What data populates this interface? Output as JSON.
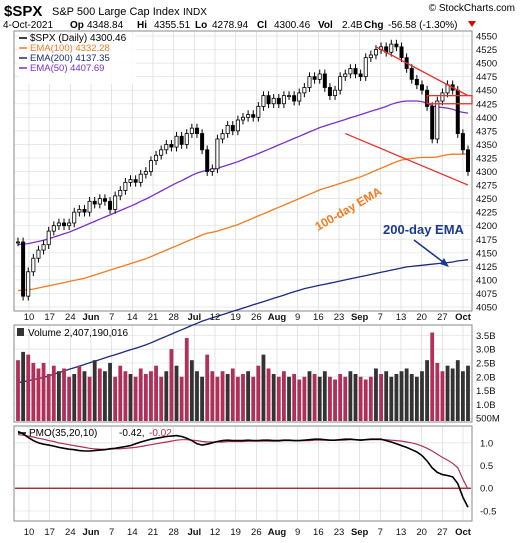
{
  "header": {
    "symbol": "$SPX",
    "name": "S&P 500 Large Cap Index",
    "exchange": "INDX",
    "watermark": "© StockCharts.com",
    "date": "4-Oct-2021",
    "stats": [
      {
        "label": "Op",
        "value": "4348.84"
      },
      {
        "label": "Hi",
        "value": "4355.51"
      },
      {
        "label": "Lo",
        "value": "4278.94"
      },
      {
        "label": "Cl",
        "value": "4300.46"
      },
      {
        "label": "Vol",
        "value": "2.4B"
      },
      {
        "label": "Chg",
        "value": "-56.58 (-1.30%)"
      }
    ]
  },
  "colors": {
    "price": "#000000",
    "ema100": "#f47a20",
    "ema200": "#1c2a80",
    "ema50": "#7a2fd0",
    "trendline": "#e8302a",
    "vol_up": "#b0305a",
    "vol_down": "#333333",
    "pmo": "#000000",
    "pmo_signal": "#b0305a",
    "pmo_zero": "#a01010",
    "annot_blue": "#1a3a8c",
    "annot_orange": "#f47a20"
  },
  "chart_data": [
    {
      "type": "line",
      "title": "$SPX (Daily) 4300.46",
      "legend": [
        {
          "name": "$SPX (Daily) 4300.46",
          "color": "#000000"
        },
        {
          "name": "EMA(100) 4332.28",
          "color": "#f47a20"
        },
        {
          "name": "EMA(200) 4137.35",
          "color": "#1c2a80"
        },
        {
          "name": "EMA(50) 4407.69",
          "color": "#7a2fd0"
        }
      ],
      "ylim": [
        4050,
        4550
      ],
      "yticks": [
        4050,
        4075,
        4100,
        4125,
        4150,
        4175,
        4200,
        4225,
        4250,
        4275,
        4300,
        4325,
        4350,
        4375,
        4400,
        4425,
        4450,
        4475,
        4500,
        4525,
        4550
      ],
      "xticks": [
        "10",
        "17",
        "24",
        "Jun",
        "7",
        "14",
        "21",
        "28",
        "Jul",
        "12",
        "19",
        "26",
        "Aug",
        "9",
        "16",
        "23",
        "Sep",
        "7",
        "13",
        "20",
        "27",
        "Oct"
      ],
      "close": [
        4170,
        4070,
        4115,
        4140,
        4155,
        4165,
        4190,
        4200,
        4205,
        4200,
        4205,
        4225,
        4230,
        4225,
        4245,
        4240,
        4250,
        4245,
        4230,
        4255,
        4265,
        4280,
        4285,
        4280,
        4295,
        4300,
        4320,
        4330,
        4340,
        4350,
        4345,
        4365,
        4350,
        4370,
        4380,
        4370,
        4340,
        4300,
        4305,
        4360,
        4370,
        4385,
        4375,
        4395,
        4400,
        4405,
        4400,
        4420,
        4440,
        4425,
        4435,
        4425,
        4440,
        4440,
        4430,
        4445,
        4455,
        4475,
        4470,
        4480,
        4455,
        4440,
        4450,
        4475,
        4480,
        4490,
        4480,
        4475,
        4510,
        4515,
        4525,
        4530,
        4520,
        4535,
        4530,
        4510,
        4490,
        4470,
        4460,
        4450,
        4420,
        4360,
        4430,
        4445,
        4460,
        4450,
        4370,
        4340,
        4300
      ],
      "ema50": [
        4165,
        4166,
        4167,
        4169,
        4171,
        4173,
        4176,
        4179,
        4182,
        4185,
        4188,
        4192,
        4196,
        4200,
        4204,
        4208,
        4212,
        4216,
        4220,
        4224,
        4228,
        4232,
        4236,
        4240,
        4245,
        4249,
        4254,
        4259,
        4264,
        4269,
        4274,
        4279,
        4283,
        4288,
        4293,
        4297,
        4300,
        4302,
        4304,
        4306,
        4309,
        4312,
        4315,
        4318,
        4322,
        4326,
        4329,
        4333,
        4337,
        4341,
        4345,
        4349,
        4353,
        4357,
        4361,
        4365,
        4369,
        4373,
        4377,
        4381,
        4384,
        4387,
        4390,
        4393,
        4396,
        4399,
        4402,
        4405,
        4408,
        4411,
        4414,
        4417,
        4420,
        4424,
        4427,
        4429,
        4430,
        4430,
        4430,
        4429,
        4426,
        4421,
        4419,
        4418,
        4417,
        4415,
        4411,
        4409,
        4407.69
      ],
      "ema100": [
        4080,
        4081,
        4082,
        4083,
        4085,
        4087,
        4089,
        4091,
        4093,
        4095,
        4097,
        4099,
        4101,
        4103,
        4106,
        4109,
        4112,
        4115,
        4118,
        4121,
        4124,
        4127,
        4130,
        4133,
        4136,
        4139,
        4143,
        4147,
        4151,
        4155,
        4159,
        4163,
        4167,
        4171,
        4175,
        4179,
        4183,
        4186,
        4188,
        4190,
        4193,
        4196,
        4199,
        4202,
        4206,
        4210,
        4214,
        4218,
        4222,
        4226,
        4230,
        4234,
        4238,
        4242,
        4246,
        4250,
        4254,
        4258,
        4262,
        4266,
        4269,
        4272,
        4275,
        4278,
        4281,
        4284,
        4287,
        4290,
        4294,
        4298,
        4302,
        4306,
        4310,
        4314,
        4318,
        4321,
        4323,
        4324,
        4325,
        4326,
        4326,
        4326,
        4327,
        4329,
        4331,
        4332,
        4332,
        4332,
        4332.28
      ],
      "ema200": [
        3910,
        3912,
        3914,
        3916,
        3918,
        3920,
        3923,
        3926,
        3929,
        3932,
        3935,
        3938,
        3941,
        3944,
        3947,
        3950,
        3953,
        3956,
        3959,
        3962,
        3965,
        3968,
        3971,
        3974,
        3977,
        3980,
        3984,
        3988,
        3992,
        3996,
        4000,
        4004,
        4008,
        4012,
        4016,
        4020,
        4024,
        4027,
        4030,
        4033,
        4036,
        4039,
        4042,
        4045,
        4048,
        4051,
        4054,
        4057,
        4060,
        4063,
        4066,
        4069,
        4072,
        4075,
        4078,
        4081,
        4084,
        4086,
        4088,
        4090,
        4092,
        4094,
        4096,
        4098,
        4100,
        4102,
        4104,
        4106,
        4108,
        4110,
        4112,
        4114,
        4116,
        4118,
        4120,
        4122,
        4124,
        4125,
        4126,
        4127,
        4128,
        4129,
        4130,
        4131,
        4132,
        4133,
        4135,
        4136,
        4137.35
      ],
      "trendlines": [
        {
          "from": [
            64,
            4370
          ],
          "to": [
            88,
            4275
          ]
        },
        {
          "from": [
            70,
            4530
          ],
          "to": [
            88,
            4440
          ]
        }
      ],
      "annotations": [
        {
          "text": "100-day EMA",
          "color": "#f47a20"
        },
        {
          "text": "200-day EMA",
          "color": "#1a3a8c"
        }
      ]
    },
    {
      "type": "bar",
      "title": "Volume 2,407,190,016",
      "ylim": [
        0.4,
        3.8
      ],
      "yticks": [
        "3.5B",
        "3.0B",
        "2.5B",
        "2.0B",
        "1.5B",
        "1.0B",
        "500M"
      ],
      "ytick_values": [
        3.5,
        3.0,
        2.5,
        2.0,
        1.5,
        1.0,
        0.5
      ],
      "values": [
        2.6,
        2.9,
        2.8,
        2.5,
        2.3,
        2.5,
        2.1,
        2.4,
        2.2,
        2.3,
        2.0,
        2.1,
        2.4,
        2.2,
        2.0,
        2.6,
        2.3,
        2.2,
        2.5,
        2.0,
        2.4,
        2.2,
        2.1,
        2.0,
        2.3,
        2.1,
        2.2,
        2.4,
        2.0,
        2.2,
        3.0,
        2.4,
        2.0,
        3.4,
        2.6,
        2.2,
        2.0,
        2.8,
        2.2,
        2.0,
        2.2,
        2.1,
        2.3,
        2.0,
        2.1,
        2.2,
        2.0,
        2.4,
        2.8,
        2.3,
        2.1,
        2.0,
        2.2,
        2.0,
        2.1,
        1.9,
        2.0,
        2.2,
        2.1,
        2.0,
        2.2,
        2.0,
        1.9,
        2.1,
        2.0,
        2.2,
        2.1,
        2.0,
        1.9,
        2.0,
        2.3,
        2.1,
        2.2,
        2.0,
        2.1,
        2.2,
        2.3,
        2.1,
        2.0,
        2.2,
        2.6,
        3.6,
        2.5,
        2.2,
        2.4,
        2.3,
        2.6,
        2.2,
        2.4
      ],
      "up": [
        1,
        0,
        1,
        1,
        1,
        1,
        1,
        1,
        0,
        1,
        1,
        0,
        1,
        0,
        1,
        0,
        1,
        0,
        0,
        1,
        1,
        1,
        0,
        1,
        1,
        1,
        1,
        1,
        1,
        0,
        1,
        0,
        1,
        1,
        0,
        0,
        0,
        1,
        1,
        1,
        1,
        0,
        1,
        1,
        1,
        0,
        1,
        1,
        0,
        1,
        0,
        1,
        1,
        0,
        1,
        1,
        1,
        0,
        1,
        0,
        0,
        1,
        1,
        1,
        1,
        0,
        0,
        1,
        1,
        1,
        0,
        1,
        0,
        0,
        0,
        0,
        0,
        0,
        0,
        0,
        0,
        1,
        1,
        1,
        0,
        0,
        0,
        0,
        0
      ]
    },
    {
      "type": "line",
      "title": "PMO(35,20,10) -0.42, -0.02",
      "legend_parts": [
        "PMO(35,20,10)",
        "-0.42,",
        "-0.02"
      ],
      "ylim": [
        -0.7,
        1.35
      ],
      "yticks": [
        "1.0",
        "0.5",
        "0.0",
        "-0.5"
      ],
      "ytick_values": [
        1.0,
        0.5,
        0.0,
        -0.5
      ],
      "pmo": [
        1.25,
        1.2,
        1.12,
        1.05,
        1.0,
        0.97,
        0.95,
        0.93,
        0.9,
        0.88,
        0.86,
        0.85,
        0.83,
        0.82,
        0.82,
        0.83,
        0.84,
        0.85,
        0.87,
        0.88,
        0.9,
        0.92,
        0.94,
        0.98,
        1.02,
        1.05,
        1.08,
        1.1,
        1.12,
        1.14,
        1.15,
        1.16,
        1.14,
        1.1,
        1.05,
        0.98,
        0.95,
        0.97,
        1.0,
        1.03,
        1.05,
        1.06,
        1.05,
        1.05,
        1.05,
        1.06,
        1.05,
        1.05,
        1.06,
        1.06,
        1.05,
        1.05,
        1.06,
        1.06,
        1.05,
        1.05,
        1.06,
        1.07,
        1.08,
        1.08,
        1.07,
        1.06,
        1.06,
        1.07,
        1.08,
        1.08,
        1.07,
        1.06,
        1.07,
        1.08,
        1.08,
        1.08,
        1.05,
        1.02,
        0.98,
        0.94,
        0.9,
        0.85,
        0.8,
        0.72,
        0.6,
        0.45,
        0.35,
        0.3,
        0.28,
        0.25,
        0.1,
        -0.2,
        -0.42
      ],
      "signal": [
        1.18,
        1.17,
        1.15,
        1.13,
        1.1,
        1.08,
        1.05,
        1.03,
        1.0,
        0.98,
        0.96,
        0.94,
        0.92,
        0.9,
        0.88,
        0.87,
        0.86,
        0.86,
        0.86,
        0.87,
        0.87,
        0.88,
        0.89,
        0.9,
        0.92,
        0.94,
        0.96,
        0.98,
        1.0,
        1.02,
        1.04,
        1.06,
        1.07,
        1.07,
        1.06,
        1.05,
        1.03,
        1.02,
        1.02,
        1.02,
        1.02,
        1.03,
        1.03,
        1.03,
        1.03,
        1.04,
        1.04,
        1.04,
        1.04,
        1.04,
        1.04,
        1.04,
        1.05,
        1.05,
        1.05,
        1.05,
        1.05,
        1.05,
        1.06,
        1.06,
        1.06,
        1.06,
        1.06,
        1.06,
        1.06,
        1.07,
        1.07,
        1.07,
        1.07,
        1.07,
        1.07,
        1.07,
        1.07,
        1.06,
        1.05,
        1.04,
        1.02,
        1.0,
        0.97,
        0.93,
        0.88,
        0.82,
        0.75,
        0.68,
        0.62,
        0.55,
        0.45,
        0.2,
        -0.02
      ]
    }
  ]
}
